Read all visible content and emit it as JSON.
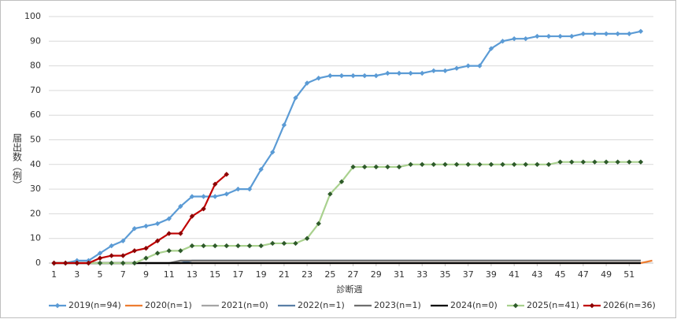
{
  "chart_data": {
    "type": "line",
    "x_label": "診断週",
    "y_label": "届出数（例）",
    "x": [
      1,
      2,
      3,
      4,
      5,
      6,
      7,
      8,
      9,
      10,
      11,
      12,
      13,
      14,
      15,
      16,
      17,
      18,
      19,
      20,
      21,
      22,
      23,
      24,
      25,
      26,
      27,
      28,
      29,
      30,
      31,
      32,
      33,
      34,
      35,
      36,
      37,
      38,
      39,
      40,
      41,
      42,
      43,
      44,
      45,
      46,
      47,
      48,
      49,
      50,
      51,
      52,
      53
    ],
    "xlim": [
      0.55,
      53.1
    ],
    "xticks": [
      1,
      3,
      5,
      7,
      9,
      11,
      13,
      15,
      17,
      19,
      21,
      23,
      25,
      27,
      29,
      31,
      33,
      35,
      37,
      39,
      41,
      43,
      45,
      47,
      49,
      51
    ],
    "ylim": [
      0,
      100
    ],
    "yticks": [
      0,
      10,
      20,
      30,
      40,
      50,
      60,
      70,
      80,
      90,
      100
    ],
    "grid": true,
    "legend": "bottom",
    "series": [
      {
        "name": "2019(n=94)",
        "color": "#5b9bd5",
        "marker": "diamond",
        "marker_color": "#5b9bd5",
        "values": [
          0,
          0,
          1,
          1,
          4,
          7,
          9,
          14,
          15,
          16,
          18,
          23,
          27,
          27,
          27,
          28,
          30,
          30,
          38,
          45,
          56,
          67,
          73,
          75,
          76,
          76,
          76,
          76,
          76,
          77,
          77,
          77,
          77,
          78,
          78,
          79,
          80,
          80,
          87,
          90,
          91,
          91,
          92,
          92,
          92,
          92,
          93,
          93,
          93,
          93,
          93,
          94,
          null
        ]
      },
      {
        "name": "2020(n=1)",
        "color": "#ed7d31",
        "values": [
          0,
          0,
          0,
          0,
          0,
          0,
          0,
          0,
          0,
          0,
          0,
          0,
          0,
          0,
          0,
          0,
          0,
          0,
          0,
          0,
          0,
          0,
          0,
          0,
          0,
          0,
          0,
          0,
          0,
          0,
          0,
          0,
          0,
          0,
          0,
          0,
          0,
          0,
          0,
          0,
          0,
          0,
          0,
          0,
          0,
          0,
          0,
          0,
          0,
          0,
          0,
          0,
          1
        ]
      },
      {
        "name": "2021(n=0)",
        "color": "#a5a5a5",
        "values": [
          0,
          0,
          0,
          0,
          0,
          0,
          0,
          0,
          0,
          0,
          0,
          0,
          0,
          0,
          0,
          0,
          0,
          0,
          0,
          0,
          0,
          0,
          0,
          0,
          0,
          0,
          0,
          0,
          0,
          0,
          0,
          0,
          0,
          0,
          0,
          0,
          0,
          0,
          0,
          0,
          0,
          0,
          0,
          0,
          0,
          0,
          0,
          0,
          0,
          0,
          0,
          0,
          null
        ]
      },
      {
        "name": "2022(n=1)",
        "color": "#5a7fa6",
        "values": [
          0,
          0,
          0,
          0,
          0,
          0,
          0,
          0,
          0,
          0,
          0,
          0,
          1,
          1,
          1,
          1,
          1,
          1,
          1,
          1,
          1,
          1,
          1,
          1,
          1,
          1,
          1,
          1,
          1,
          1,
          1,
          1,
          1,
          1,
          1,
          1,
          1,
          1,
          1,
          1,
          1,
          1,
          1,
          1,
          1,
          1,
          1,
          1,
          1,
          1,
          1,
          1,
          null
        ]
      },
      {
        "name": "2023(n=1)",
        "color": "#6e6e6e",
        "values": [
          0,
          0,
          0,
          0,
          0,
          0,
          0,
          0,
          0,
          0,
          0,
          1,
          1,
          1,
          1,
          1,
          1,
          1,
          1,
          1,
          1,
          1,
          1,
          1,
          1,
          1,
          1,
          1,
          1,
          1,
          1,
          1,
          1,
          1,
          1,
          1,
          1,
          1,
          1,
          1,
          1,
          1,
          1,
          1,
          1,
          1,
          1,
          1,
          1,
          1,
          1,
          1,
          null
        ]
      },
      {
        "name": "2024(n=0)",
        "color": "#000000",
        "values": [
          0,
          0,
          0,
          0,
          0,
          0,
          0,
          0,
          0,
          0,
          0,
          0,
          0,
          0,
          0,
          0,
          0,
          0,
          0,
          0,
          0,
          0,
          0,
          0,
          0,
          0,
          0,
          0,
          0,
          0,
          0,
          0,
          0,
          0,
          0,
          0,
          0,
          0,
          0,
          0,
          0,
          0,
          0,
          0,
          0,
          0,
          0,
          0,
          0,
          0,
          0,
          0,
          null
        ]
      },
      {
        "name": "2025(n=41)",
        "color": "#a9d18e",
        "marker": "diamond",
        "marker_color": "#2e5a2a",
        "values": [
          0,
          0,
          0,
          0,
          0,
          0,
          0,
          0,
          2,
          4,
          5,
          5,
          7,
          7,
          7,
          7,
          7,
          7,
          7,
          8,
          8,
          8,
          10,
          16,
          28,
          33,
          39,
          39,
          39,
          39,
          39,
          40,
          40,
          40,
          40,
          40,
          40,
          40,
          40,
          40,
          40,
          40,
          40,
          40,
          41,
          41,
          41,
          41,
          41,
          41,
          41,
          41,
          null
        ]
      },
      {
        "name": "2026(n=36)",
        "color": "#c00000",
        "marker": "diamond",
        "marker_color": "#8b0000",
        "values": [
          0,
          0,
          0,
          0,
          2,
          3,
          3,
          5,
          6,
          9,
          12,
          12,
          19,
          22,
          32,
          36,
          null,
          null,
          null,
          null,
          null,
          null,
          null,
          null,
          null,
          null,
          null,
          null,
          null,
          null,
          null,
          null,
          null,
          null,
          null,
          null,
          null,
          null,
          null,
          null,
          null,
          null,
          null,
          null,
          null,
          null,
          null,
          null,
          null,
          null,
          null,
          null,
          null
        ]
      }
    ]
  }
}
